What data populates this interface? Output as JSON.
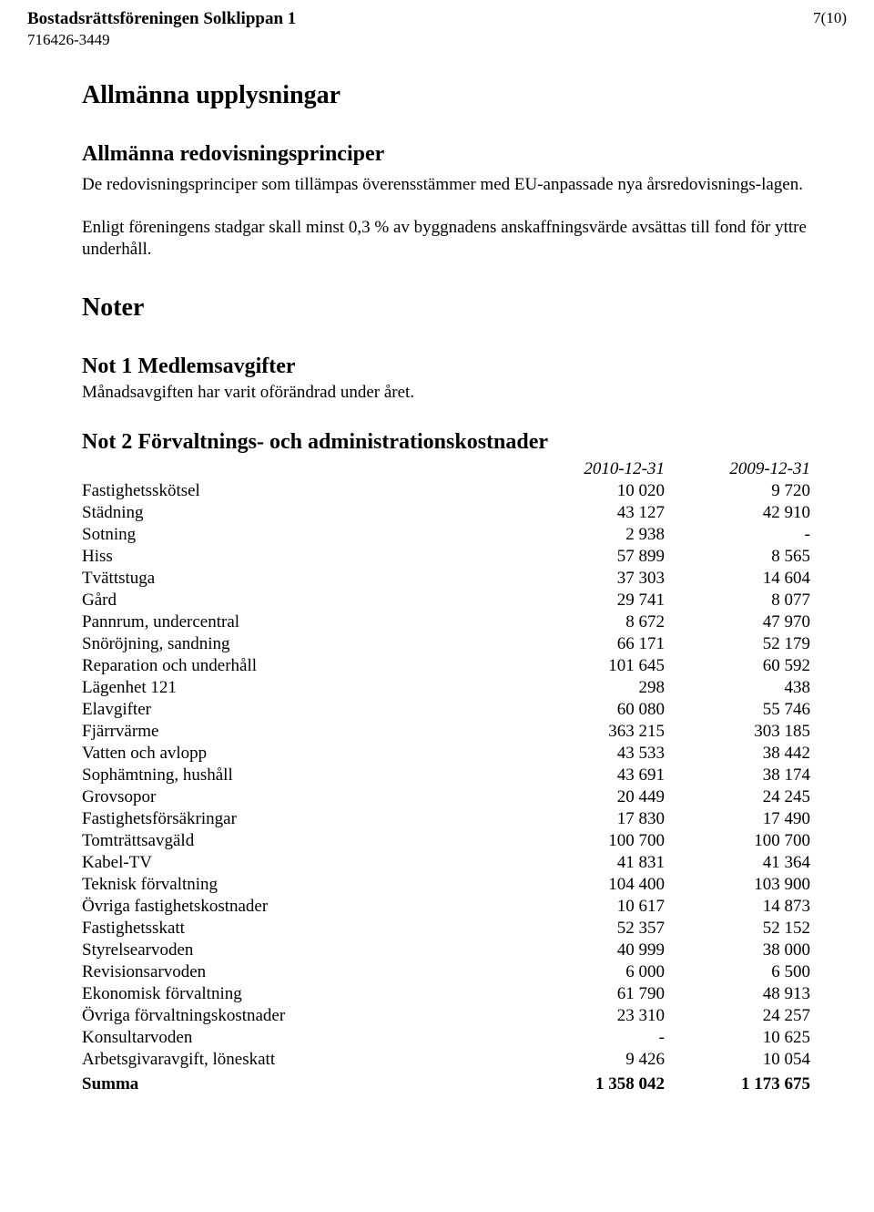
{
  "header": {
    "org_name": "Bostadsrättsföreningen Solklippan 1",
    "org_id": "716426-3449",
    "page_number": "7(10)"
  },
  "section_title": "Allmänna upplysningar",
  "principles": {
    "heading": "Allmänna redovisningsprinciper",
    "p1": "De redovisningsprinciper som tillämpas överensstämmer med EU-anpassade nya årsredovisnings-lagen.",
    "p2": "Enligt föreningens stadgar skall minst 0,3 % av byggnadens anskaffningsvärde avsättas till fond för yttre underhåll."
  },
  "noter_title": "Noter",
  "note1": {
    "heading": "Not 1  Medlemsavgifter",
    "body": "Månadsavgiften har varit oförändrad under året."
  },
  "note2": {
    "heading": "Not 2  Förvaltnings- och administrationskostnader",
    "col1": "2010-12-31",
    "col2": "2009-12-31",
    "rows": [
      {
        "label": "Fastighetsskötsel",
        "v1": "10 020",
        "v2": "9 720"
      },
      {
        "label": "Städning",
        "v1": "43 127",
        "v2": "42 910"
      },
      {
        "label": "Sotning",
        "v1": "2 938",
        "v2": "-"
      },
      {
        "label": "Hiss",
        "v1": "57 899",
        "v2": "8 565"
      },
      {
        "label": "Tvättstuga",
        "v1": "37 303",
        "v2": "14 604"
      },
      {
        "label": "Gård",
        "v1": "29 741",
        "v2": "8 077"
      },
      {
        "label": "Pannrum, undercentral",
        "v1": "8 672",
        "v2": "47 970"
      },
      {
        "label": "Snöröjning, sandning",
        "v1": "66 171",
        "v2": "52 179"
      },
      {
        "label": "Reparation och underhåll",
        "v1": "101 645",
        "v2": "60 592"
      },
      {
        "label": "Lägenhet 121",
        "v1": "298",
        "v2": "438"
      },
      {
        "label": "Elavgifter",
        "v1": "60 080",
        "v2": "55 746"
      },
      {
        "label": "Fjärrvärme",
        "v1": "363 215",
        "v2": "303 185"
      },
      {
        "label": "Vatten och avlopp",
        "v1": "43 533",
        "v2": "38 442"
      },
      {
        "label": "Sophämtning, hushåll",
        "v1": "43 691",
        "v2": "38 174"
      },
      {
        "label": "Grovsopor",
        "v1": "20 449",
        "v2": "24 245"
      },
      {
        "label": "Fastighetsförsäkringar",
        "v1": "17 830",
        "v2": "17 490"
      },
      {
        "label": "Tomträttsavgäld",
        "v1": "100 700",
        "v2": "100 700"
      },
      {
        "label": "Kabel-TV",
        "v1": "41 831",
        "v2": "41 364"
      },
      {
        "label": "Teknisk förvaltning",
        "v1": "104 400",
        "v2": "103 900"
      },
      {
        "label": "Övriga fastighetskostnader",
        "v1": "10 617",
        "v2": "14 873"
      },
      {
        "label": "Fastighetsskatt",
        "v1": "52 357",
        "v2": "52 152"
      },
      {
        "label": "Styrelsearvoden",
        "v1": "40 999",
        "v2": "38 000"
      },
      {
        "label": "Revisionsarvoden",
        "v1": "6 000",
        "v2": "6 500"
      },
      {
        "label": "Ekonomisk förvaltning",
        "v1": "61 790",
        "v2": "48 913"
      },
      {
        "label": "Övriga förvaltningskostnader",
        "v1": "23 310",
        "v2": "24 257"
      },
      {
        "label": "Konsultarvoden",
        "v1": "-",
        "v2": "10 625"
      },
      {
        "label": "Arbetsgivaravgift, löneskatt",
        "v1": "9 426",
        "v2": "10 054"
      }
    ],
    "summa": {
      "label": "Summa",
      "v1": "1 358 042",
      "v2": "1 173 675"
    }
  }
}
